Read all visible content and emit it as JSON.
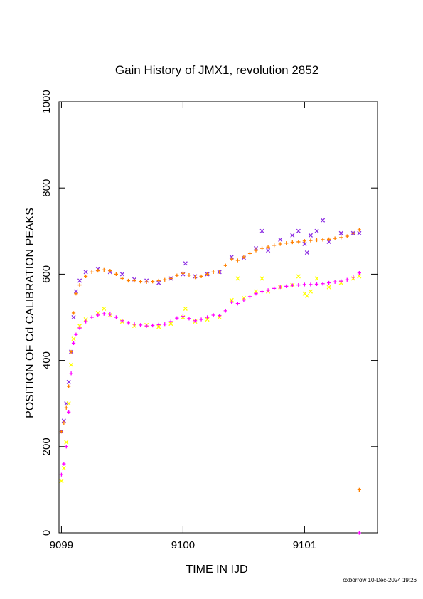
{
  "chart_data": {
    "type": "scatter",
    "title": "Gain History of JMX1, revolution 2852",
    "xlabel": "TIME IN IJD",
    "ylabel": "POSITION OF Cd CALIBRATION PEAKS",
    "xlim": [
      9098.98,
      9101.6
    ],
    "ylim": [
      0,
      1000
    ],
    "x_ticks": [
      9099,
      9100,
      9101
    ],
    "y_ticks": [
      0,
      200,
      400,
      600,
      800,
      1000
    ],
    "grid": false,
    "series": [
      {
        "color": "#8a2be2",
        "marker": "x",
        "points": [
          [
            9099.0,
            235
          ],
          [
            9099.02,
            260
          ],
          [
            9099.04,
            300
          ],
          [
            9099.06,
            350
          ],
          [
            9099.08,
            420
          ],
          [
            9099.1,
            500
          ],
          [
            9099.12,
            560
          ],
          [
            9099.15,
            585
          ],
          [
            9099.2,
            605
          ],
          [
            9099.3,
            612
          ],
          [
            9099.4,
            605
          ],
          [
            9099.5,
            600
          ],
          [
            9099.6,
            588
          ],
          [
            9099.7,
            585
          ],
          [
            9099.8,
            580
          ],
          [
            9099.9,
            590
          ],
          [
            9100.0,
            600
          ],
          [
            9100.02,
            625
          ],
          [
            9100.1,
            595
          ],
          [
            9100.2,
            600
          ],
          [
            9100.3,
            605
          ],
          [
            9100.4,
            640
          ],
          [
            9100.5,
            638
          ],
          [
            9100.6,
            660
          ],
          [
            9100.65,
            700
          ],
          [
            9100.7,
            655
          ],
          [
            9100.8,
            680
          ],
          [
            9100.9,
            690
          ],
          [
            9100.95,
            700
          ],
          [
            9101.0,
            670
          ],
          [
            9101.02,
            650
          ],
          [
            9101.05,
            690
          ],
          [
            9101.1,
            700
          ],
          [
            9101.15,
            725
          ],
          [
            9101.2,
            675
          ],
          [
            9101.3,
            695
          ],
          [
            9101.4,
            695
          ],
          [
            9101.45,
            695
          ]
        ]
      },
      {
        "color": "#ff8000",
        "marker": "+",
        "points": [
          [
            9099.0,
            235
          ],
          [
            9099.02,
            255
          ],
          [
            9099.04,
            290
          ],
          [
            9099.06,
            340
          ],
          [
            9099.08,
            420
          ],
          [
            9099.1,
            510
          ],
          [
            9099.12,
            555
          ],
          [
            9099.15,
            575
          ],
          [
            9099.2,
            595
          ],
          [
            9099.25,
            605
          ],
          [
            9099.3,
            608
          ],
          [
            9099.35,
            610
          ],
          [
            9099.4,
            608
          ],
          [
            9099.45,
            600
          ],
          [
            9099.5,
            590
          ],
          [
            9099.55,
            585
          ],
          [
            9099.6,
            585
          ],
          [
            9099.65,
            583
          ],
          [
            9099.7,
            582
          ],
          [
            9099.75,
            583
          ],
          [
            9099.8,
            585
          ],
          [
            9099.85,
            587
          ],
          [
            9099.9,
            590
          ],
          [
            9099.95,
            597
          ],
          [
            9100.0,
            602
          ],
          [
            9100.05,
            598
          ],
          [
            9100.1,
            593
          ],
          [
            9100.15,
            595
          ],
          [
            9100.2,
            600
          ],
          [
            9100.25,
            605
          ],
          [
            9100.3,
            605
          ],
          [
            9100.35,
            620
          ],
          [
            9100.4,
            635
          ],
          [
            9100.45,
            632
          ],
          [
            9100.5,
            640
          ],
          [
            9100.55,
            648
          ],
          [
            9100.6,
            655
          ],
          [
            9100.65,
            660
          ],
          [
            9100.7,
            663
          ],
          [
            9100.75,
            667
          ],
          [
            9100.8,
            670
          ],
          [
            9100.85,
            672
          ],
          [
            9100.9,
            674
          ],
          [
            9100.95,
            675
          ],
          [
            9101.0,
            677
          ],
          [
            9101.05,
            678
          ],
          [
            9101.1,
            679
          ],
          [
            9101.15,
            680
          ],
          [
            9101.2,
            681
          ],
          [
            9101.25,
            683
          ],
          [
            9101.3,
            685
          ],
          [
            9101.35,
            688
          ],
          [
            9101.4,
            695
          ],
          [
            9101.45,
            703
          ],
          [
            9101.45,
            100
          ]
        ]
      },
      {
        "color": "#ffff00",
        "marker": "x",
        "points": [
          [
            9099.0,
            120
          ],
          [
            9099.02,
            150
          ],
          [
            9099.04,
            210
          ],
          [
            9099.06,
            300
          ],
          [
            9099.08,
            390
          ],
          [
            9099.1,
            450
          ],
          [
            9099.15,
            480
          ],
          [
            9099.2,
            495
          ],
          [
            9099.3,
            510
          ],
          [
            9099.35,
            520
          ],
          [
            9099.4,
            505
          ],
          [
            9099.5,
            490
          ],
          [
            9099.6,
            480
          ],
          [
            9099.7,
            482
          ],
          [
            9099.8,
            478
          ],
          [
            9099.9,
            485
          ],
          [
            9100.0,
            500
          ],
          [
            9100.02,
            520
          ],
          [
            9100.1,
            490
          ],
          [
            9100.2,
            495
          ],
          [
            9100.3,
            500
          ],
          [
            9100.4,
            540
          ],
          [
            9100.45,
            590
          ],
          [
            9100.5,
            545
          ],
          [
            9100.6,
            560
          ],
          [
            9100.65,
            590
          ],
          [
            9100.7,
            560
          ],
          [
            9100.8,
            570
          ],
          [
            9100.9,
            575
          ],
          [
            9100.95,
            595
          ],
          [
            9101.0,
            555
          ],
          [
            9101.02,
            550
          ],
          [
            9101.05,
            560
          ],
          [
            9101.1,
            590
          ],
          [
            9101.2,
            570
          ],
          [
            9101.3,
            580
          ],
          [
            9101.4,
            590
          ],
          [
            9101.45,
            595
          ]
        ]
      },
      {
        "color": "#ff00ff",
        "marker": "+",
        "points": [
          [
            9099.0,
            135
          ],
          [
            9099.02,
            160
          ],
          [
            9099.04,
            200
          ],
          [
            9099.06,
            280
          ],
          [
            9099.08,
            370
          ],
          [
            9099.1,
            440
          ],
          [
            9099.12,
            460
          ],
          [
            9099.15,
            475
          ],
          [
            9099.2,
            490
          ],
          [
            9099.25,
            500
          ],
          [
            9099.3,
            505
          ],
          [
            9099.35,
            508
          ],
          [
            9099.4,
            507
          ],
          [
            9099.45,
            500
          ],
          [
            9099.5,
            492
          ],
          [
            9099.55,
            487
          ],
          [
            9099.6,
            484
          ],
          [
            9099.65,
            482
          ],
          [
            9099.7,
            480
          ],
          [
            9099.75,
            481
          ],
          [
            9099.8,
            483
          ],
          [
            9099.85,
            484
          ],
          [
            9099.9,
            490
          ],
          [
            9099.95,
            498
          ],
          [
            9100.0,
            502
          ],
          [
            9100.05,
            497
          ],
          [
            9100.1,
            492
          ],
          [
            9100.15,
            495
          ],
          [
            9100.2,
            500
          ],
          [
            9100.25,
            505
          ],
          [
            9100.3,
            504
          ],
          [
            9100.35,
            515
          ],
          [
            9100.4,
            535
          ],
          [
            9100.45,
            532
          ],
          [
            9100.5,
            540
          ],
          [
            9100.55,
            548
          ],
          [
            9100.6,
            555
          ],
          [
            9100.65,
            560
          ],
          [
            9100.7,
            563
          ],
          [
            9100.75,
            567
          ],
          [
            9100.8,
            570
          ],
          [
            9100.85,
            572
          ],
          [
            9100.9,
            574
          ],
          [
            9100.95,
            575
          ],
          [
            9101.0,
            576
          ],
          [
            9101.05,
            576
          ],
          [
            9101.1,
            577
          ],
          [
            9101.15,
            578
          ],
          [
            9101.2,
            580
          ],
          [
            9101.25,
            582
          ],
          [
            9101.3,
            584
          ],
          [
            9101.35,
            587
          ],
          [
            9101.4,
            593
          ],
          [
            9101.45,
            603
          ],
          [
            9101.45,
            0
          ]
        ]
      }
    ]
  },
  "footer": "oxborrow 10-Dec-2024 19:26"
}
